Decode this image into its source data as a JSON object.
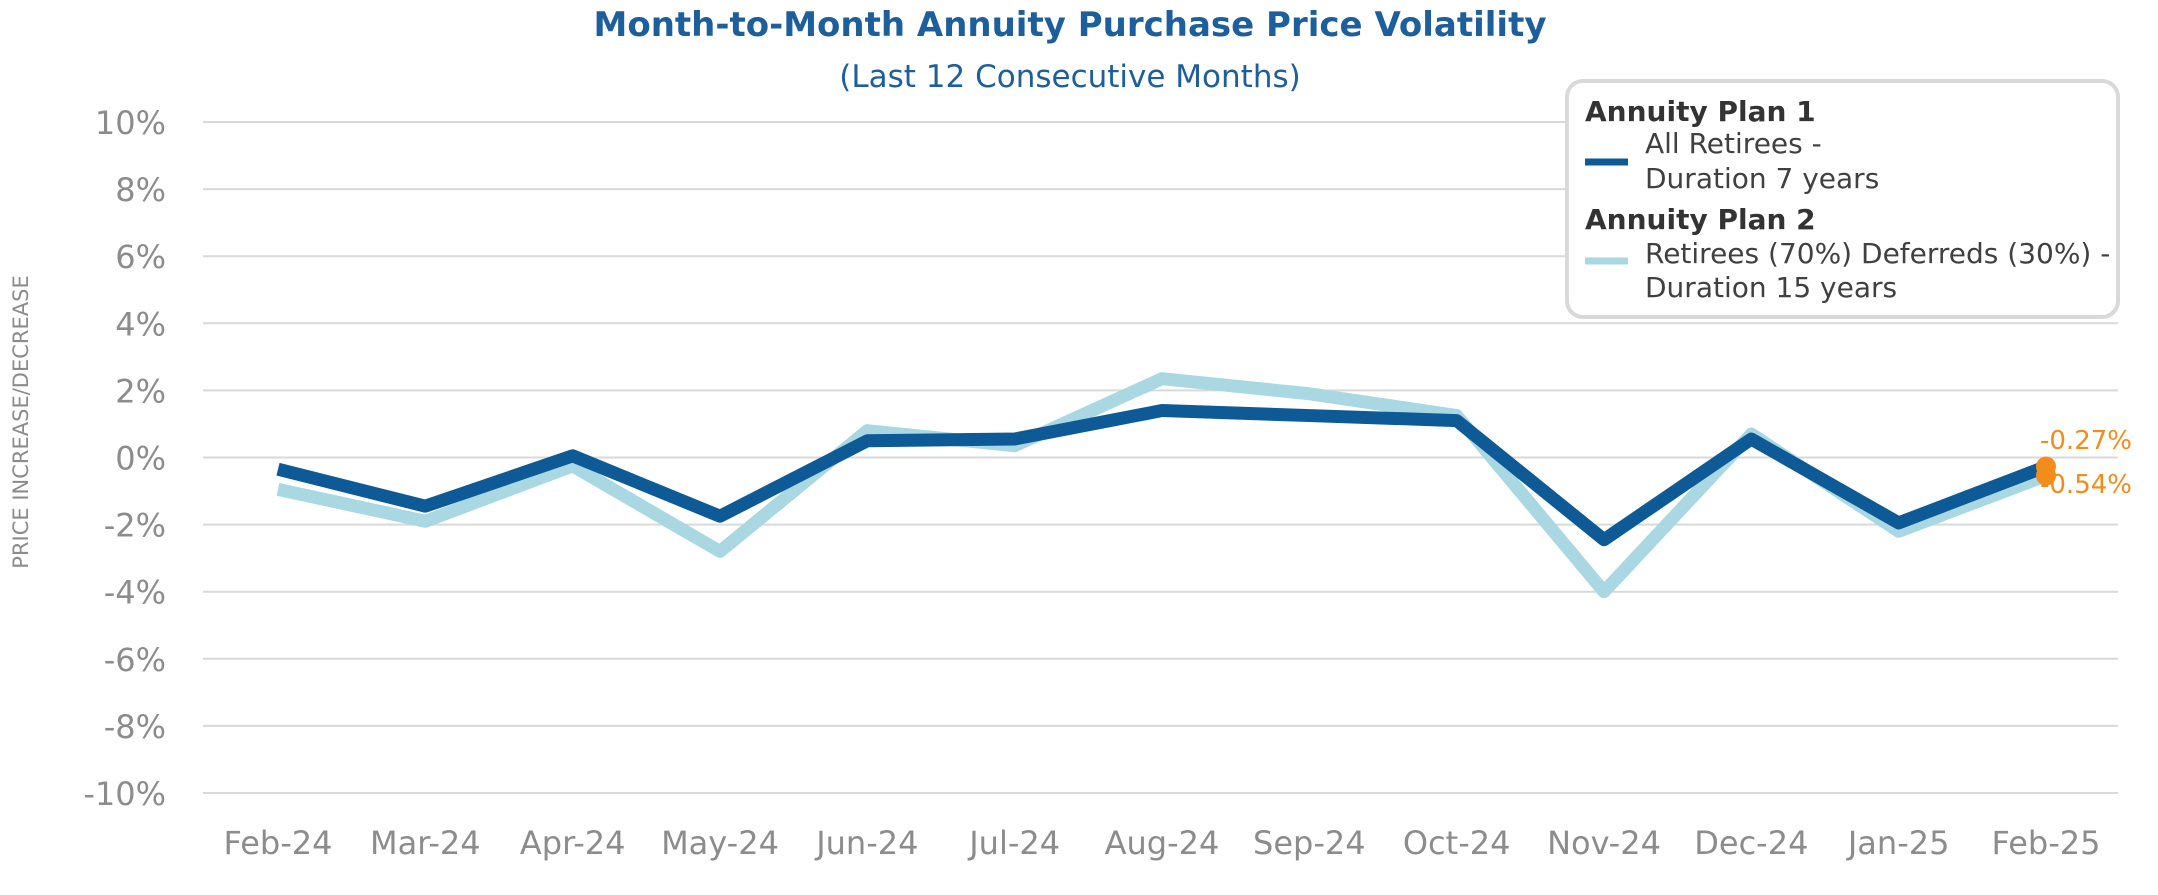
{
  "chart_data": {
    "type": "line",
    "title": "Month-to-Month Annuity Purchase Price Volatility",
    "subtitle": "(Last 12 Consecutive Months)",
    "xlabel": "",
    "ylabel": "PRICE INCREASE/DECREASE",
    "categories": [
      "Feb-24",
      "Mar-24",
      "Apr-24",
      "May-24",
      "Jun-24",
      "Jul-24",
      "Aug-24",
      "Sep-24",
      "Oct-24",
      "Nov-24",
      "Dec-24",
      "Jan-25",
      "Feb-25"
    ],
    "ylim": [
      -10,
      10
    ],
    "yticks": [
      "10%",
      "8%",
      "6%",
      "4%",
      "2%",
      "0%",
      "-2%",
      "-4%",
      "-6%",
      "-8%",
      "-10%"
    ],
    "ytick_values": [
      10,
      8,
      6,
      4,
      2,
      0,
      -2,
      -4,
      -6,
      -8,
      -10
    ],
    "grid": true,
    "legend_position": "top-right",
    "series": [
      {
        "name": "Annuity Plan 1",
        "description_line1": "All Retirees -",
        "description_line2": "Duration 7 years",
        "color": "#0e5a96",
        "values": [
          -0.35,
          -1.45,
          0.05,
          -1.75,
          0.5,
          0.55,
          1.4,
          1.25,
          1.1,
          -2.45,
          0.55,
          -1.95,
          -0.27
        ],
        "end_label": "-0.27%"
      },
      {
        "name": "Annuity Plan 2",
        "description_line1": "Retirees (70%) Deferreds (30%) -",
        "description_line2": "Duration 15 years",
        "color": "#a9d8e3",
        "values": [
          -0.95,
          -1.9,
          -0.25,
          -2.8,
          0.8,
          0.35,
          2.35,
          1.9,
          1.25,
          -4.0,
          0.7,
          -2.2,
          -0.54
        ],
        "end_label": "-0.54%"
      }
    ],
    "marker_color": "#f28c1b"
  }
}
